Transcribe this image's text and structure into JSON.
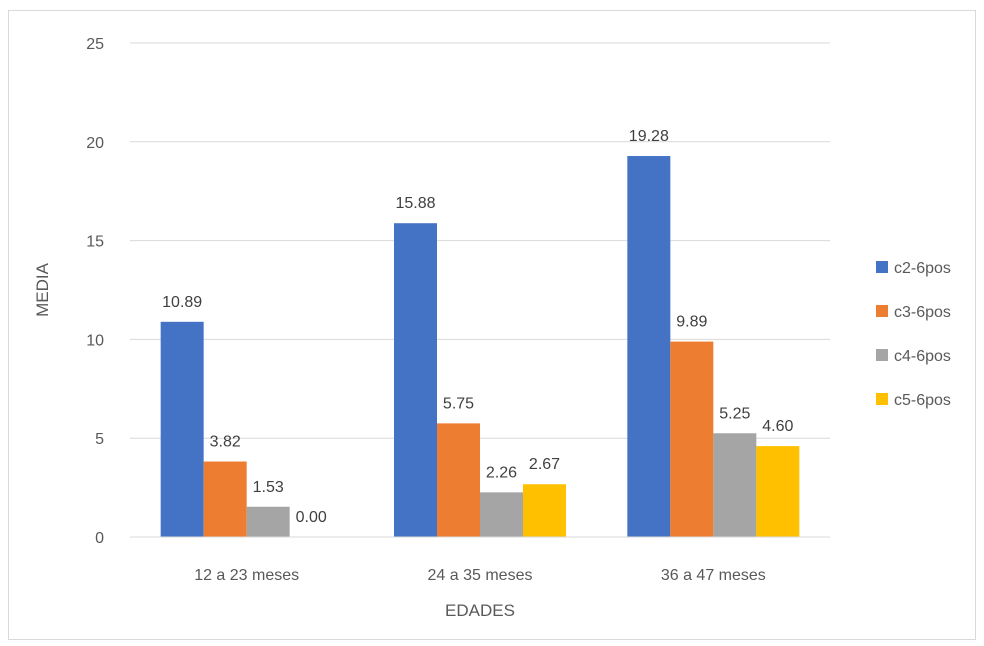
{
  "chart_data": {
    "type": "bar",
    "title": "",
    "xlabel": "EDADES",
    "ylabel": "MEDIA",
    "ylim": [
      0,
      25
    ],
    "yticks": [
      0,
      5,
      10,
      15,
      20,
      25
    ],
    "grid": true,
    "legend_position": "right",
    "categories": [
      "12 a 23 meses",
      "24 a 35 meses",
      "36 a 47 meses"
    ],
    "series": [
      {
        "name": "c2-6pos",
        "color": "#4472C4",
        "values": [
          10.89,
          15.88,
          19.28
        ],
        "labels": [
          "10.89",
          "15.88",
          "19.28"
        ]
      },
      {
        "name": "c3-6pos",
        "color": "#ED7D31",
        "values": [
          3.82,
          5.75,
          9.89
        ],
        "labels": [
          "3.82",
          "5.75",
          "9.89"
        ]
      },
      {
        "name": "c4-6pos",
        "color": "#A5A5A5",
        "values": [
          1.53,
          2.26,
          5.25
        ],
        "labels": [
          "1.53",
          "2.26",
          "5.25"
        ]
      },
      {
        "name": "c5-6pos",
        "color": "#FFC000",
        "values": [
          0.0,
          2.67,
          4.6
        ],
        "labels": [
          "0.00",
          "2.67",
          "4.60"
        ]
      }
    ]
  }
}
